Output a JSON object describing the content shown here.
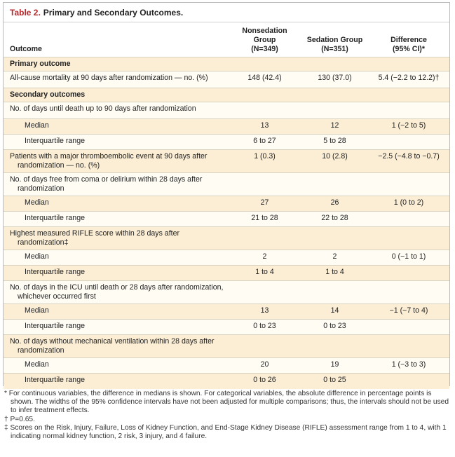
{
  "table": {
    "label": "Table 2.",
    "title": "Primary and Secondary Outcomes.",
    "headers": {
      "outcome": "Outcome",
      "nonsedation": "Nonsedation Group",
      "nonsedation_n": "(N=349)",
      "sedation": "Sedation Group",
      "sedation_n": "(N=351)",
      "difference": "Difference",
      "difference_ci": "(95% CI)*"
    },
    "rows": [
      {
        "label": "Primary outcome",
        "type": "section",
        "a": "",
        "b": "",
        "c": ""
      },
      {
        "label": "All-cause mortality at 90 days after randomization — no. (%)",
        "type": "item",
        "a": "148 (42.4)",
        "b": "130 (37.0)",
        "c": "5.4 (−2.2 to 12.2)†"
      },
      {
        "label": "Secondary outcomes",
        "type": "section",
        "a": "",
        "b": "",
        "c": ""
      },
      {
        "label": "No. of days until death up to 90 days after randomization",
        "type": "item",
        "a": "",
        "b": "",
        "c": ""
      },
      {
        "label": "Median",
        "type": "sub",
        "a": "13",
        "b": "12",
        "c": "1 (−2 to 5)"
      },
      {
        "label": "Interquartile range",
        "type": "sub",
        "a": "6 to 27",
        "b": "5 to 28",
        "c": ""
      },
      {
        "label": "Patients with a major thromboembolic event at 90 days after randomization — no. (%)",
        "type": "item",
        "a": "1 (0.3)",
        "b": "10 (2.8)",
        "c": "−2.5 (−4.8 to −0.7)"
      },
      {
        "label": "No. of days free from coma or delirium within 28 days after randomization",
        "type": "item",
        "a": "",
        "b": "",
        "c": ""
      },
      {
        "label": "Median",
        "type": "sub",
        "a": "27",
        "b": "26",
        "c": "1 (0 to 2)"
      },
      {
        "label": "Interquartile range",
        "type": "sub",
        "a": "21 to 28",
        "b": "22 to 28",
        "c": ""
      },
      {
        "label": "Highest measured RIFLE score within 28 days after randomization‡",
        "type": "item",
        "a": "",
        "b": "",
        "c": ""
      },
      {
        "label": "Median",
        "type": "sub",
        "a": "2",
        "b": "2",
        "c": "0 (−1 to 1)"
      },
      {
        "label": "Interquartile range",
        "type": "sub",
        "a": "1 to 4",
        "b": "1 to 4",
        "c": ""
      },
      {
        "label": "No. of days in the ICU until death or 28 days after randomization, whichever occurred first",
        "type": "item",
        "a": "",
        "b": "",
        "c": ""
      },
      {
        "label": "Median",
        "type": "sub",
        "a": "13",
        "b": "14",
        "c": "−1 (−7 to 4)"
      },
      {
        "label": "Interquartile range",
        "type": "sub",
        "a": "0 to 23",
        "b": "0 to 23",
        "c": ""
      },
      {
        "label": "No. of days without mechanical ventilation within 28 days after randomization",
        "type": "item",
        "a": "",
        "b": "",
        "c": ""
      },
      {
        "label": "Median",
        "type": "sub",
        "a": "20",
        "b": "19",
        "c": "1 (−3 to 3)"
      },
      {
        "label": "Interquartile range",
        "type": "sub",
        "a": "0 to 26",
        "b": "0 to 25",
        "c": ""
      }
    ]
  },
  "footnotes": [
    "* For continuous variables, the difference in medians is shown. For categorical variables, the absolute difference in percentage points is shown. The widths of the 95% confidence intervals have not been adjusted for multiple comparisons; thus, the intervals should not be used to infer treatment effects.",
    "† P=0.65.",
    "‡ Scores on the Risk, Injury, Failure, Loss of Kidney Function, and End-Stage Kidney Disease (RIFLE) assessment range from 1 to 4, with 1 indicating normal kidney function, 2 risk, 3 injury, and 4 failure."
  ]
}
